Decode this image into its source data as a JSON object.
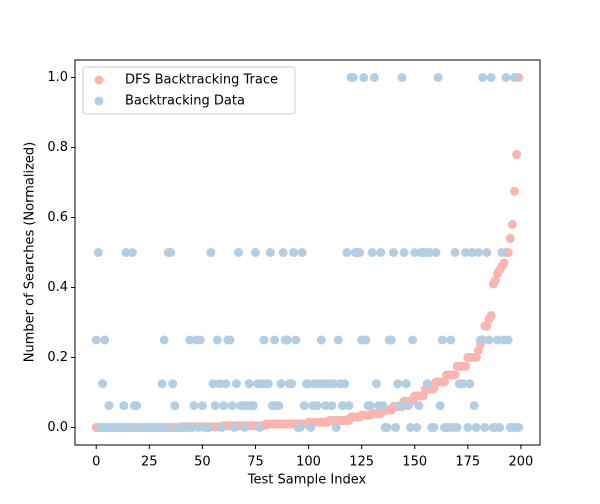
{
  "chart_data": {
    "type": "scatter",
    "xlabel": "Test Sample Index",
    "ylabel": "Number of Searches (Normalized)",
    "xlim": [
      -10,
      209
    ],
    "ylim": [
      -0.05,
      1.05
    ],
    "xticks": [
      0,
      25,
      50,
      75,
      100,
      125,
      150,
      175,
      200
    ],
    "yticks": [
      {
        "value": 0,
        "label": "0.0"
      },
      {
        "value": 0.2,
        "label": "0.2"
      },
      {
        "value": 0.4,
        "label": "0.4"
      },
      {
        "value": 0.6,
        "label": "0.6"
      },
      {
        "value": 0.8,
        "label": "0.8"
      },
      {
        "value": 1,
        "label": "1.0"
      }
    ],
    "legend": "upper left",
    "x": [
      0,
      1,
      2,
      3,
      4,
      5,
      6,
      7,
      8,
      9,
      10,
      11,
      12,
      13,
      14,
      15,
      16,
      17,
      18,
      19,
      20,
      21,
      22,
      23,
      24,
      25,
      26,
      27,
      28,
      29,
      30,
      31,
      32,
      33,
      34,
      35,
      36,
      37,
      38,
      39,
      40,
      41,
      42,
      43,
      44,
      45,
      46,
      47,
      48,
      49,
      50,
      51,
      52,
      53,
      54,
      55,
      56,
      57,
      58,
      59,
      60,
      61,
      62,
      63,
      64,
      65,
      66,
      67,
      68,
      69,
      70,
      71,
      72,
      73,
      74,
      75,
      76,
      77,
      78,
      79,
      80,
      81,
      82,
      83,
      84,
      85,
      86,
      87,
      88,
      89,
      90,
      91,
      92,
      93,
      94,
      95,
      96,
      97,
      98,
      99,
      100,
      101,
      102,
      103,
      104,
      105,
      106,
      107,
      108,
      109,
      110,
      111,
      112,
      113,
      114,
      115,
      116,
      117,
      118,
      119,
      120,
      121,
      122,
      123,
      124,
      125,
      126,
      127,
      128,
      129,
      130,
      131,
      132,
      133,
      134,
      135,
      136,
      137,
      138,
      139,
      140,
      141,
      142,
      143,
      144,
      145,
      146,
      147,
      148,
      149,
      150,
      151,
      152,
      153,
      154,
      155,
      156,
      157,
      158,
      159,
      160,
      161,
      162,
      163,
      164,
      165,
      166,
      167,
      168,
      169,
      170,
      171,
      172,
      173,
      174,
      175,
      176,
      177,
      178,
      179,
      180,
      181,
      182,
      183,
      184,
      185,
      186,
      187,
      188,
      189,
      190,
      191,
      192,
      193,
      194,
      195,
      196,
      197,
      198,
      199
    ],
    "series": [
      {
        "name": "DFS Backtracking Trace",
        "color": "#fbb4ae",
        "values": [
          0,
          0,
          0,
          0,
          0,
          0,
          0,
          0,
          0,
          0,
          0,
          0,
          0,
          0,
          0,
          0,
          0,
          0,
          0,
          0,
          0,
          0,
          0,
          0,
          0,
          0,
          0,
          0,
          0,
          0,
          0,
          0,
          0,
          0,
          0,
          0,
          0,
          0,
          0,
          0,
          0.002,
          0.002,
          0.002,
          0.002,
          0.002,
          0.002,
          0.002,
          0.002,
          0.002,
          0.002,
          0.002,
          0.002,
          0.002,
          0.002,
          0.002,
          0.002,
          0.002,
          0.002,
          0.002,
          0.002,
          0.005,
          0.005,
          0.005,
          0.005,
          0.005,
          0.005,
          0.005,
          0.005,
          0.005,
          0.005,
          0.005,
          0.005,
          0.005,
          0.005,
          0.005,
          0.005,
          0.005,
          0.005,
          0.005,
          0.005,
          0.01,
          0.01,
          0.01,
          0.01,
          0.01,
          0.01,
          0.01,
          0.01,
          0.01,
          0.01,
          0.01,
          0.01,
          0.01,
          0.01,
          0.01,
          0.01,
          0.01,
          0.01,
          0.01,
          0.01,
          0.015,
          0.015,
          0.015,
          0.015,
          0.015,
          0.015,
          0.015,
          0.015,
          0.015,
          0.015,
          0.02,
          0.02,
          0.02,
          0.02,
          0.02,
          0.02,
          0.02,
          0.02,
          0.02,
          0.02,
          0.03,
          0.03,
          0.03,
          0.03,
          0.03,
          0.035,
          0.035,
          0.035,
          0.035,
          0.035,
          0.04,
          0.04,
          0.04,
          0.04,
          0.04,
          0.05,
          0.05,
          0.05,
          0.05,
          0.05,
          0.06,
          0.06,
          0.06,
          0.06,
          0.06,
          0.075,
          0.075,
          0.075,
          0.075,
          0.075,
          0.09,
          0.09,
          0.09,
          0.09,
          0.09,
          0.11,
          0.11,
          0.11,
          0.11,
          0.11,
          0.13,
          0.13,
          0.13,
          0.13,
          0.13,
          0.15,
          0.15,
          0.15,
          0.15,
          0.15,
          0.175,
          0.175,
          0.175,
          0.175,
          0.175,
          0.2,
          0.2,
          0.2,
          0.2,
          0.2,
          0.22,
          0.24,
          0.25,
          0.29,
          0.29,
          0.31,
          0.32,
          0.41,
          0.42,
          0.44,
          0.45,
          0.46,
          0.47,
          0.5,
          0.5,
          0.54,
          0.58,
          0.675,
          0.78,
          1.0
        ]
      },
      {
        "name": "Backtracking Data",
        "color": "#b3cde3",
        "values": [
          0.25,
          0.5,
          0,
          0.125,
          0.25,
          0,
          0.0625,
          0,
          0,
          0,
          0,
          0,
          0,
          0.0625,
          0.5,
          0,
          0,
          0.5,
          0.0625,
          0.0625,
          0,
          0,
          0,
          0,
          0,
          0,
          0,
          0,
          0,
          0,
          0,
          0.125,
          0.25,
          0,
          0.5,
          0.5,
          0.125,
          0.0625,
          0,
          0,
          0,
          0,
          0,
          0,
          0.25,
          0,
          0.0625,
          0.25,
          0,
          0.25,
          0.0625,
          0,
          0,
          0,
          0.5,
          0.125,
          0.0625,
          0.25,
          0.125,
          0,
          0.0625,
          0.125,
          0.25,
          0.25,
          0.0625,
          0,
          0.125,
          0.5,
          0.0625,
          0.0625,
          0,
          0.0625,
          0.125,
          0.0625,
          0.0625,
          0.5,
          0.125,
          0,
          0.125,
          0.25,
          0.125,
          0.125,
          0.5,
          0.0625,
          0.25,
          0.0625,
          0.0625,
          0.125,
          0.5,
          0.25,
          0.25,
          0.125,
          0.125,
          0.5,
          0.25,
          0,
          0,
          0.5,
          0.0625,
          0.125,
          0.125,
          0,
          0.0625,
          0.125,
          0.0625,
          0.125,
          0.25,
          0.125,
          0.0625,
          0.125,
          0.125,
          0.0625,
          0.125,
          0,
          0.25,
          0.125,
          0.0625,
          0.125,
          0.5,
          0.0625,
          1.0,
          1.0,
          0.5,
          0.5,
          0.5,
          0.25,
          1.0,
          0.25,
          0.0625,
          0.0625,
          0.5,
          1.0,
          0.125,
          0.0625,
          0.5,
          0.0625,
          0,
          0,
          0.25,
          0.25,
          0.5,
          0,
          0.125,
          0.0625,
          1.0,
          0.5,
          0.125,
          0.0625,
          0,
          0.25,
          0.5,
          0,
          0.0625,
          0.5,
          0.5,
          0.5,
          0.125,
          0.5,
          0,
          0,
          0.5,
          1.0,
          0.0625,
          0.25,
          0,
          0,
          0,
          0.25,
          0,
          0.5,
          0,
          0.125,
          0.125,
          0.125,
          0.5,
          0,
          0.125,
          0.5,
          0.0625,
          0,
          0.5,
          0.25,
          1.0,
          0,
          0.5,
          0.25,
          1.0,
          0,
          0,
          0.25,
          0,
          0.5,
          0.25,
          1.0,
          0.25,
          0,
          0,
          1.0,
          0,
          0
        ]
      }
    ]
  }
}
